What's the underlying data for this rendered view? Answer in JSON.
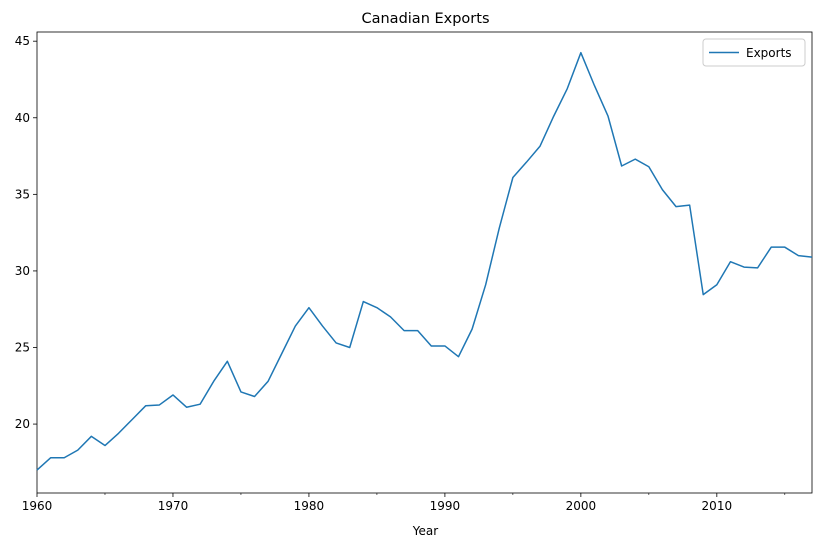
{
  "chart_data": {
    "type": "line",
    "title": "Canadian Exports",
    "xlabel": "Year",
    "ylabel": "",
    "xlim": [
      1960,
      2017
    ],
    "ylim": [
      15.5,
      45.6
    ],
    "x_ticks": [
      1960,
      1970,
      1980,
      1990,
      2000,
      2010
    ],
    "y_ticks": [
      20,
      25,
      30,
      35,
      40,
      45
    ],
    "grid": false,
    "legend_position": "top-right",
    "series": [
      {
        "name": "Exports",
        "color": "#1f77b4",
        "x": [
          1960,
          1961,
          1962,
          1963,
          1964,
          1965,
          1966,
          1967,
          1968,
          1969,
          1970,
          1971,
          1972,
          1973,
          1974,
          1975,
          1976,
          1977,
          1978,
          1979,
          1980,
          1981,
          1982,
          1983,
          1984,
          1985,
          1986,
          1987,
          1988,
          1989,
          1990,
          1991,
          1992,
          1993,
          1994,
          1995,
          1996,
          1997,
          1998,
          1999,
          2000,
          2001,
          2002,
          2003,
          2004,
          2005,
          2006,
          2007,
          2008,
          2009,
          2010,
          2011,
          2012,
          2013,
          2014,
          2015,
          2016,
          2017
        ],
        "y": [
          17.0,
          17.8,
          17.8,
          18.3,
          19.2,
          18.6,
          19.4,
          20.3,
          21.2,
          21.25,
          21.9,
          21.1,
          21.3,
          22.8,
          24.1,
          22.1,
          21.8,
          22.8,
          24.6,
          26.4,
          27.6,
          26.4,
          25.3,
          25.0,
          28.0,
          27.6,
          27.0,
          26.1,
          26.1,
          25.1,
          25.1,
          24.4,
          26.2,
          29.1,
          32.8,
          36.1,
          37.1,
          38.15,
          40.1,
          41.9,
          44.25,
          42.1,
          40.1,
          36.85,
          37.3,
          36.8,
          35.3,
          34.2,
          34.3,
          28.45,
          29.1,
          30.6,
          30.25,
          30.2,
          31.55,
          31.55,
          31.0,
          30.9
        ]
      }
    ]
  }
}
